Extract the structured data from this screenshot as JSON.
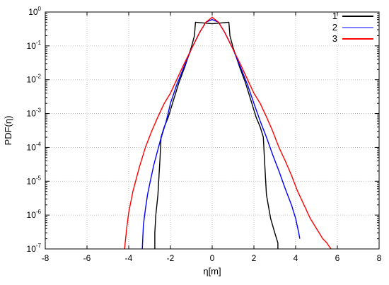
{
  "chart_data": {
    "type": "line",
    "xlabel": "η[m]",
    "ylabel": "PDF(η)",
    "xlim": [
      -8,
      8
    ],
    "ylim": [
      1e-07,
      1
    ],
    "yscale": "log",
    "grid": true,
    "legend_position": "top-right",
    "x_ticks": [
      "-8",
      "-6",
      "-4",
      "-2",
      "0",
      "2",
      "4",
      "6",
      "8"
    ],
    "y_ticks": [
      {
        "base": "10",
        "exp": "0"
      },
      {
        "base": "10",
        "exp": "-1"
      },
      {
        "base": "10",
        "exp": "-2"
      },
      {
        "base": "10",
        "exp": "-3"
      },
      {
        "base": "10",
        "exp": "-4"
      },
      {
        "base": "10",
        "exp": "-5"
      },
      {
        "base": "10",
        "exp": "-6"
      },
      {
        "base": "10",
        "exp": "-7"
      }
    ],
    "series": [
      {
        "name": "1",
        "color": "#000000",
        "x": [
          -2.75,
          -2.75,
          -2.7,
          -2.6,
          -2.5,
          -2.45,
          -2.3,
          -2.1,
          -1.9,
          -1.6,
          -1.3,
          -1.0,
          -0.85,
          -0.8,
          0.0,
          0.8,
          0.85,
          1.0,
          1.3,
          1.6,
          1.9,
          2.1,
          2.3,
          2.45,
          2.5,
          2.6,
          2.8,
          3.0,
          3.15,
          3.15
        ],
        "y": [
          1e-07,
          3e-07,
          1e-06,
          4e-06,
          5e-05,
          0.0002,
          0.0004,
          0.0008,
          0.002,
          0.008,
          0.025,
          0.09,
          0.2,
          0.5,
          0.45,
          0.5,
          0.2,
          0.09,
          0.025,
          0.008,
          0.002,
          0.0008,
          0.0004,
          0.0002,
          5e-05,
          4e-06,
          8e-07,
          3e-07,
          1.5e-07,
          1e-07
        ]
      },
      {
        "name": "2",
        "color": "#0000ff",
        "x": [
          -3.35,
          -3.3,
          -3.2,
          -3.1,
          -3.0,
          -2.8,
          -2.5,
          -2.2,
          -2.0,
          -1.7,
          -1.4,
          -1.0,
          -0.6,
          -0.3,
          0.0,
          0.3,
          0.6,
          1.0,
          1.4,
          1.7,
          2.0,
          2.3,
          2.6,
          2.9,
          3.2,
          3.5,
          3.8,
          4.0,
          4.15,
          4.2
        ],
        "y": [
          1e-07,
          5e-07,
          1.5e-06,
          4e-06,
          8e-06,
          3e-05,
          0.00015,
          0.0006,
          0.002,
          0.007,
          0.02,
          0.08,
          0.25,
          0.5,
          0.6,
          0.5,
          0.25,
          0.08,
          0.02,
          0.007,
          0.002,
          0.0006,
          0.0002,
          6e-05,
          2e-05,
          6e-06,
          2e-06,
          8e-07,
          3e-07,
          2e-07
        ]
      },
      {
        "name": "3",
        "color": "#ff0000",
        "x": [
          -4.2,
          -4.15,
          -4.1,
          -4.0,
          -3.8,
          -3.5,
          -3.2,
          -2.9,
          -2.6,
          -2.3,
          -2.0,
          -1.7,
          -1.4,
          -1.0,
          -0.6,
          -0.3,
          0.0,
          0.3,
          0.6,
          1.0,
          1.4,
          1.7,
          2.0,
          2.3,
          2.6,
          2.9,
          3.2,
          3.5,
          3.8,
          4.1,
          4.4,
          4.7,
          5.0,
          5.3,
          5.5,
          5.6,
          5.7
        ],
        "y": [
          1e-07,
          2e-07,
          4e-07,
          1.2e-06,
          5e-06,
          2.5e-05,
          0.0001,
          0.0003,
          0.0008,
          0.002,
          0.004,
          0.01,
          0.025,
          0.08,
          0.25,
          0.5,
          0.7,
          0.5,
          0.25,
          0.08,
          0.025,
          0.01,
          0.004,
          0.002,
          0.0008,
          0.0003,
          0.0001,
          4e-05,
          1.5e-05,
          5e-06,
          2e-06,
          8e-07,
          4e-07,
          2e-07,
          1.5e-07,
          1.2e-07,
          1e-07
        ]
      }
    ]
  }
}
